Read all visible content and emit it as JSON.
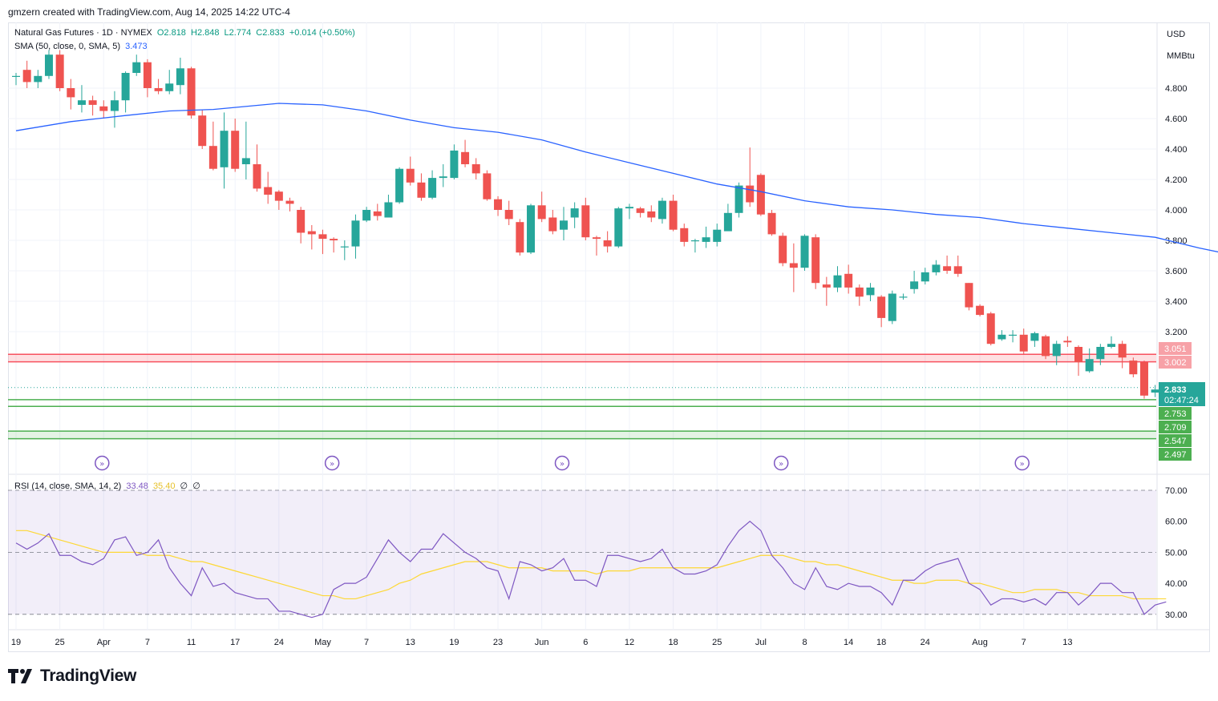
{
  "header": {
    "created_by": "gmzern created with TradingView.com, Aug 14, 2025 14:22 UTC-4"
  },
  "legend": {
    "symbol": "Natural Gas Futures · 1D · NYMEX",
    "open": "O2.818",
    "high": "H2.848",
    "low": "L2.774",
    "close": "C2.833",
    "change": "+0.014 (+0.50%)",
    "sma_label": "SMA (50, close, 0, SMA, 5)",
    "sma_value": "3.473",
    "rsi_label": "RSI (14, close, SMA, 14, 2)",
    "rsi_value": "33.48",
    "rsi_sma_value": "35.40",
    "rsi_extra1": "∅",
    "rsi_extra2": "∅"
  },
  "axis": {
    "currency": "USD",
    "unit": "MMBtu"
  },
  "colors": {
    "up": "#26a69a",
    "down": "#ef5350",
    "sma": "#2962ff",
    "rsi": "#7e57c2",
    "rsi_sma": "#fdd835",
    "resistance": "#f7525f",
    "support": "#4caf50"
  },
  "price_badges": {
    "last": "2.833",
    "countdown": "02:47:24"
  },
  "brand": {
    "name": "TradingView"
  },
  "chart_data": [
    {
      "type": "candlestick",
      "title": "Natural Gas Futures · 1D · NYMEX",
      "ylim": [
        2.4,
        5.05
      ],
      "yticks": [
        "4.800",
        "4.600",
        "4.400",
        "4.200",
        "4.000",
        "3.800",
        "3.600",
        "3.400",
        "3.200"
      ],
      "xticks": [
        "19",
        "25",
        "Apr",
        "7",
        "11",
        "17",
        "24",
        "May",
        "7",
        "13",
        "19",
        "23",
        "Jun",
        "6",
        "12",
        "18",
        "25",
        "Jul",
        "8",
        "14",
        "18",
        "24",
        "Aug",
        "7",
        "13"
      ],
      "xtick_bars": [
        0,
        4,
        8,
        12,
        16,
        20,
        24,
        28,
        32,
        36,
        40,
        44,
        48,
        52,
        56,
        60,
        64,
        68,
        72,
        76,
        79,
        83,
        88,
        92,
        96
      ],
      "candles": [
        [
          4.88,
          4.88,
          4.9,
          4.82
        ],
        [
          4.92,
          4.84,
          4.98,
          4.8
        ],
        [
          4.84,
          4.88,
          4.92,
          4.8
        ],
        [
          4.88,
          5.02,
          5.05,
          4.86
        ],
        [
          5.02,
          4.8,
          5.05,
          4.78
        ],
        [
          4.8,
          4.74,
          4.86,
          4.66
        ],
        [
          4.69,
          4.72,
          4.82,
          4.64
        ],
        [
          4.72,
          4.69,
          4.75,
          4.62
        ],
        [
          4.68,
          4.65,
          4.72,
          4.6
        ],
        [
          4.65,
          4.72,
          4.78,
          4.54
        ],
        [
          4.72,
          4.9,
          4.91,
          4.64
        ],
        [
          4.9,
          4.97,
          5.02,
          4.88
        ],
        [
          4.97,
          4.8,
          4.99,
          4.74
        ],
        [
          4.8,
          4.78,
          4.86,
          4.76
        ],
        [
          4.78,
          4.83,
          4.92,
          4.76
        ],
        [
          4.82,
          4.93,
          5.0,
          4.76
        ],
        [
          4.93,
          4.62,
          4.94,
          4.6
        ],
        [
          4.62,
          4.42,
          4.66,
          4.4
        ],
        [
          4.42,
          4.27,
          4.58,
          4.26
        ],
        [
          4.28,
          4.52,
          4.64,
          4.14
        ],
        [
          4.52,
          4.27,
          4.6,
          4.25
        ],
        [
          4.3,
          4.34,
          4.58,
          4.2
        ],
        [
          4.3,
          4.14,
          4.43,
          4.12
        ],
        [
          4.15,
          4.1,
          4.25,
          4.04
        ],
        [
          4.12,
          4.06,
          4.13,
          4.0
        ],
        [
          4.06,
          4.04,
          4.08,
          3.99
        ],
        [
          4.0,
          3.85,
          4.02,
          3.78
        ],
        [
          3.86,
          3.84,
          3.9,
          3.74
        ],
        [
          3.84,
          3.81,
          3.87,
          3.71
        ],
        [
          3.81,
          3.8,
          3.82,
          3.72
        ],
        [
          3.76,
          3.76,
          3.8,
          3.67
        ],
        [
          3.76,
          3.93,
          3.97,
          3.68
        ],
        [
          3.93,
          4.0,
          4.02,
          3.92
        ],
        [
          3.99,
          3.96,
          4.04,
          3.93
        ],
        [
          3.95,
          4.05,
          4.1,
          3.95
        ],
        [
          4.05,
          4.27,
          4.28,
          4.04
        ],
        [
          4.27,
          4.18,
          4.35,
          4.16
        ],
        [
          4.18,
          4.08,
          4.24,
          4.06
        ],
        [
          4.08,
          4.21,
          4.26,
          4.07
        ],
        [
          4.21,
          4.22,
          4.3,
          4.15
        ],
        [
          4.21,
          4.39,
          4.43,
          4.2
        ],
        [
          4.38,
          4.3,
          4.46,
          4.28
        ],
        [
          4.3,
          4.24,
          4.34,
          4.2
        ],
        [
          4.24,
          4.07,
          4.26,
          4.06
        ],
        [
          4.07,
          4.0,
          4.09,
          3.96
        ],
        [
          4.0,
          3.94,
          4.06,
          3.9
        ],
        [
          3.92,
          3.72,
          3.94,
          3.7
        ],
        [
          3.72,
          4.03,
          4.04,
          3.71
        ],
        [
          4.03,
          3.94,
          4.12,
          3.92
        ],
        [
          3.95,
          3.86,
          4.0,
          3.84
        ],
        [
          3.87,
          3.93,
          4.02,
          3.8
        ],
        [
          3.95,
          4.01,
          4.05,
          3.88
        ],
        [
          4.03,
          3.82,
          4.08,
          3.8
        ],
        [
          3.82,
          3.81,
          3.83,
          3.7
        ],
        [
          3.8,
          3.76,
          3.86,
          3.72
        ],
        [
          3.76,
          4.01,
          4.02,
          3.75
        ],
        [
          4.01,
          4.02,
          4.04,
          3.94
        ],
        [
          4.01,
          3.98,
          4.02,
          3.95
        ],
        [
          3.99,
          3.95,
          4.03,
          3.92
        ],
        [
          3.94,
          4.06,
          4.08,
          3.91
        ],
        [
          4.06,
          3.87,
          4.1,
          3.86
        ],
        [
          3.88,
          3.79,
          3.91,
          3.76
        ],
        [
          3.8,
          3.8,
          3.81,
          3.72
        ],
        [
          3.79,
          3.82,
          3.89,
          3.75
        ],
        [
          3.79,
          3.87,
          3.91,
          3.76
        ],
        [
          3.86,
          3.98,
          4.04,
          3.94
        ],
        [
          3.98,
          4.16,
          4.18,
          3.95
        ],
        [
          4.16,
          4.05,
          4.41,
          4.02
        ],
        [
          4.23,
          3.97,
          4.24,
          3.96
        ],
        [
          3.98,
          3.84,
          4.0,
          3.83
        ],
        [
          3.83,
          3.65,
          3.85,
          3.63
        ],
        [
          3.65,
          3.62,
          3.78,
          3.46
        ],
        [
          3.62,
          3.83,
          3.84,
          3.6
        ],
        [
          3.82,
          3.52,
          3.84,
          3.48
        ],
        [
          3.51,
          3.49,
          3.56,
          3.37
        ],
        [
          3.49,
          3.57,
          3.63,
          3.46
        ],
        [
          3.58,
          3.49,
          3.64,
          3.45
        ],
        [
          3.49,
          3.43,
          3.51,
          3.37
        ],
        [
          3.44,
          3.49,
          3.52,
          3.4
        ],
        [
          3.43,
          3.29,
          3.44,
          3.23
        ],
        [
          3.27,
          3.45,
          3.47,
          3.25
        ],
        [
          3.43,
          3.43,
          3.45,
          3.41
        ],
        [
          3.48,
          3.53,
          3.6,
          3.45
        ],
        [
          3.53,
          3.59,
          3.62,
          3.51
        ],
        [
          3.59,
          3.64,
          3.67,
          3.57
        ],
        [
          3.63,
          3.6,
          3.7,
          3.58
        ],
        [
          3.63,
          3.58,
          3.7,
          3.56
        ],
        [
          3.52,
          3.36,
          3.52,
          3.34
        ],
        [
          3.37,
          3.31,
          3.38,
          3.3
        ],
        [
          3.32,
          3.12,
          3.33,
          3.11
        ],
        [
          3.15,
          3.18,
          3.21,
          3.14
        ],
        [
          3.18,
          3.18,
          3.21,
          3.13
        ],
        [
          3.18,
          3.07,
          3.22,
          3.05
        ],
        [
          3.14,
          3.19,
          3.2,
          3.1
        ],
        [
          3.17,
          3.04,
          3.18,
          3.02
        ],
        [
          3.04,
          3.12,
          3.14,
          2.98
        ],
        [
          3.14,
          3.13,
          3.17,
          3.1
        ],
        [
          3.1,
          3.0,
          3.11,
          2.91
        ],
        [
          2.94,
          3.02,
          3.09,
          2.93
        ],
        [
          3.02,
          3.1,
          3.12,
          2.98
        ],
        [
          3.1,
          3.12,
          3.17,
          3.09
        ],
        [
          3.12,
          3.03,
          3.14,
          2.96
        ],
        [
          3.01,
          2.92,
          3.03,
          2.9
        ],
        [
          3.0,
          2.78,
          3.01,
          2.76
        ],
        [
          2.8,
          2.82,
          2.85,
          2.77
        ],
        [
          2.82,
          2.83,
          2.85,
          2.77
        ]
      ],
      "sma": {
        "name": "SMA (50, close, 0, SMA, 5)",
        "points": [
          [
            0,
            4.52
          ],
          [
            5,
            4.58
          ],
          [
            10,
            4.62
          ],
          [
            14,
            4.65
          ],
          [
            18,
            4.66
          ],
          [
            24,
            4.7
          ],
          [
            28,
            4.69
          ],
          [
            32,
            4.65
          ],
          [
            36,
            4.59
          ],
          [
            40,
            4.54
          ],
          [
            44,
            4.51
          ],
          [
            48,
            4.46
          ],
          [
            52,
            4.38
          ],
          [
            56,
            4.31
          ],
          [
            60,
            4.24
          ],
          [
            64,
            4.17
          ],
          [
            68,
            4.12
          ],
          [
            72,
            4.06
          ],
          [
            76,
            4.02
          ],
          [
            80,
            4.0
          ],
          [
            84,
            3.97
          ],
          [
            88,
            3.95
          ],
          [
            92,
            3.91
          ],
          [
            96,
            3.88
          ],
          [
            100,
            3.85
          ],
          [
            104,
            3.82
          ],
          [
            108,
            3.75
          ],
          [
            112,
            3.69
          ],
          [
            116,
            3.63
          ],
          [
            120,
            3.58
          ],
          [
            124,
            3.52
          ],
          [
            126,
            3.47
          ]
        ]
      },
      "levels": {
        "resistance": [
          "3.051",
          "3.002"
        ],
        "support_1": [
          "2.753",
          "2.709"
        ],
        "support_2": [
          "2.547",
          "2.497"
        ]
      }
    },
    {
      "type": "line",
      "title": "RSI (14, close, SMA, 14, 2)",
      "ylim": [
        25,
        75
      ],
      "yticks": [
        "70.00",
        "60.00",
        "50.00",
        "40.00",
        "30.00"
      ],
      "series": [
        {
          "name": "RSI",
          "values": [
            53,
            51,
            53,
            56,
            49,
            49,
            47,
            46,
            48,
            54,
            55,
            49,
            50,
            54,
            45,
            40,
            36,
            45,
            39,
            40,
            37,
            36,
            35,
            35,
            31,
            31,
            30,
            29,
            30,
            38,
            40,
            40,
            42,
            48,
            54,
            50,
            47,
            51,
            51,
            56,
            53,
            50,
            48,
            45,
            44,
            35,
            47,
            46,
            44,
            45,
            48,
            41,
            41,
            39,
            49,
            49,
            48,
            47,
            48,
            51,
            45,
            43,
            43,
            44,
            46,
            52,
            57,
            60,
            57,
            49,
            45,
            40,
            38,
            45,
            39,
            38,
            40,
            39,
            39,
            37,
            33,
            41,
            41,
            44,
            46,
            47,
            48,
            40,
            38,
            33,
            35,
            35,
            34,
            35,
            33,
            37,
            37,
            33,
            36,
            40,
            40,
            37,
            37,
            30,
            33,
            34
          ]
        },
        {
          "name": "RSI-based MA",
          "values": [
            57,
            57,
            56,
            55,
            54,
            53,
            52,
            51,
            50,
            50,
            50,
            50,
            49,
            49,
            49,
            48,
            47,
            47,
            46,
            45,
            44,
            43,
            42,
            41,
            40,
            39,
            38,
            37,
            36,
            36,
            35,
            35,
            36,
            37,
            38,
            40,
            41,
            43,
            44,
            45,
            46,
            47,
            47,
            47,
            46,
            45,
            45,
            45,
            45,
            44,
            44,
            44,
            44,
            43,
            44,
            44,
            44,
            45,
            45,
            45,
            45,
            45,
            45,
            45,
            45,
            46,
            47,
            48,
            49,
            49,
            49,
            48,
            47,
            47,
            46,
            46,
            45,
            44,
            43,
            42,
            41,
            41,
            40,
            40,
            41,
            41,
            41,
            40,
            40,
            39,
            38,
            37,
            37,
            38,
            38,
            38,
            37,
            37,
            36,
            36,
            36,
            36,
            35,
            35,
            35,
            35
          ]
        }
      ],
      "bands": {
        "upper": 70,
        "middle": 50,
        "lower": 30
      }
    }
  ]
}
